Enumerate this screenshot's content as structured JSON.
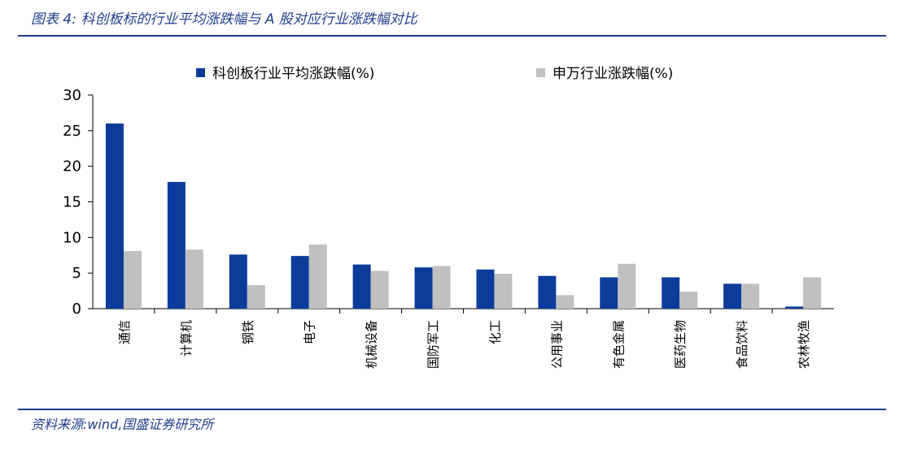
{
  "figure": {
    "title": "图表 4:  科创板标的行业平均涨跌幅与 A 股对应行业涨跌幅对比",
    "source": "资料来源:wind,国盛证券研究所"
  },
  "chart_data": {
    "type": "bar",
    "categories": [
      "通信",
      "计算机",
      "钢铁",
      "电子",
      "机械设备",
      "国防军工",
      "化工",
      "公用事业",
      "有色金属",
      "医药生物",
      "食品饮料",
      "农林牧渔"
    ],
    "series": [
      {
        "name": "科创板行业平均涨跌幅(%)",
        "color": "#0b3c9b",
        "values": [
          26.0,
          17.8,
          7.6,
          7.4,
          6.2,
          5.8,
          5.5,
          4.6,
          4.4,
          4.4,
          3.5,
          0.3
        ]
      },
      {
        "name": "申万行业涨跌幅(%)",
        "color": "#c0c0c0",
        "values": [
          8.1,
          8.3,
          3.3,
          9.0,
          5.3,
          6.0,
          4.9,
          1.9,
          6.3,
          2.4,
          3.5,
          4.4
        ]
      }
    ],
    "yticks": [
      0,
      5,
      10,
      15,
      20,
      25,
      30
    ],
    "ylim": [
      0,
      30
    ],
    "legend_position": "top",
    "grid": false
  }
}
